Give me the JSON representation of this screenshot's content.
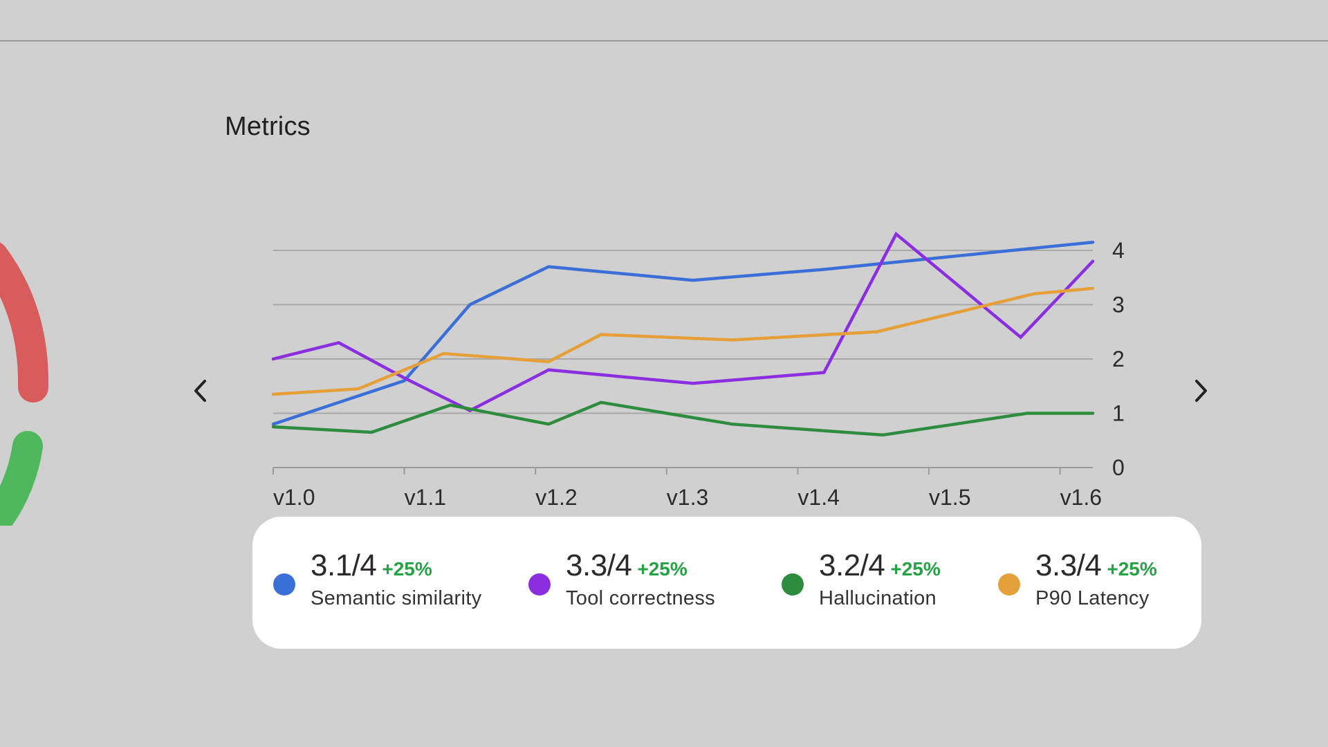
{
  "header": {
    "title": "Metrics"
  },
  "nav": {
    "prev_icon": "chevron-left-icon",
    "next_icon": "chevron-right-icon"
  },
  "colors": {
    "blue": "#3a6fd8",
    "purple": "#8b2ee0",
    "green": "#2e8c3e",
    "orange": "#e6a03a",
    "positive": "#25a244",
    "gauge_red": "#d95c5c",
    "gauge_green": "#4fb85c"
  },
  "chart_data": {
    "type": "line",
    "title": "Metrics",
    "xlabel": "",
    "ylabel": "",
    "y_axis_side": "right",
    "grid": true,
    "categories": [
      "v1.0",
      "v1.1",
      "v1.2",
      "v1.3",
      "v1.4",
      "v1.5",
      "v1.6"
    ],
    "yticks": [
      0,
      1,
      2,
      3,
      4
    ],
    "ylim": [
      0,
      4
    ],
    "xlim": [
      0,
      6.25
    ],
    "series": [
      {
        "name": "Semantic similarity",
        "color": "#3a6fd8",
        "x": [
          0,
          1,
          1.5,
          2.1,
          3.2,
          4.2,
          6.25
        ],
        "y": [
          0.8,
          1.6,
          3.0,
          3.7,
          3.45,
          3.65,
          4.15
        ]
      },
      {
        "name": "Tool correctness",
        "color": "#8b2ee0",
        "x": [
          0,
          0.5,
          1,
          1.5,
          2.1,
          3.2,
          4.2,
          4.75,
          5.7,
          6.25
        ],
        "y": [
          2.0,
          2.3,
          1.65,
          1.05,
          1.8,
          1.55,
          1.75,
          4.3,
          2.4,
          3.8
        ]
      },
      {
        "name": "Hallucination",
        "color": "#2e8c3e",
        "x": [
          0,
          0.75,
          1.35,
          2.1,
          2.5,
          3.5,
          4.65,
          5.75,
          6.25
        ],
        "y": [
          0.75,
          0.65,
          1.15,
          0.8,
          1.2,
          0.8,
          0.6,
          1.0,
          1.0
        ]
      },
      {
        "name": "P90 Latency",
        "color": "#e6a03a",
        "x": [
          0,
          0.65,
          1.3,
          2.1,
          2.5,
          3.5,
          4.6,
          5.8,
          6.25
        ],
        "y": [
          1.35,
          1.45,
          2.1,
          1.95,
          2.45,
          2.35,
          2.5,
          3.2,
          3.3
        ]
      }
    ]
  },
  "legend": [
    {
      "value": "3.1/4",
      "change": "+25%",
      "label": "Semantic similarity",
      "color": "#3a6fd8"
    },
    {
      "value": "3.3/4",
      "change": "+25%",
      "label": "Tool correctness",
      "color": "#8b2ee0"
    },
    {
      "value": "3.2/4",
      "change": "+25%",
      "label": "Hallucination",
      "color": "#2e8c3e"
    },
    {
      "value": "3.3/4",
      "change": "+25%",
      "label": "P90 Latency",
      "color": "#e6a03a"
    }
  ]
}
